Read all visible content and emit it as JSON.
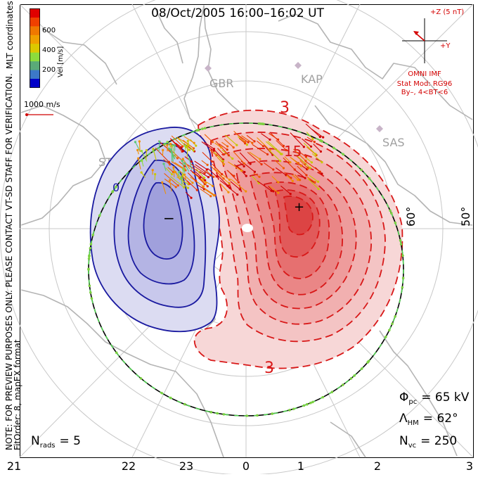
{
  "header": {
    "title": "08/Oct/2005 16:00–16:02 UT",
    "coords_label": "MLT coordinates"
  },
  "disclaimer": {
    "line1": "NOTE: FOR PREVIEW PURPOSES ONLY. PLEASE CONTACT VT-SD STAFF FOR VERIFICATION.",
    "line2": "FitOrder: 8, mapEX format"
  },
  "velocity_scale": {
    "label": "Vel [m/s]",
    "ticks": [
      "600",
      "400",
      "200"
    ],
    "colors": [
      "#0000c8",
      "#3c78c8",
      "#5aaa78",
      "#8cdc3c",
      "#dcc800",
      "#f0a000",
      "#f07800",
      "#f04000",
      "#e00000"
    ],
    "reference_label": "1000 m/s"
  },
  "imf": {
    "z_label": "+Z (5 nT)",
    "y_label": "+Y",
    "source": "OMNI IMF",
    "model": "Stat Mod: RG96",
    "condition": "By–, 4<BT<6",
    "color": "#d40000"
  },
  "stations": [
    "GBR",
    "KAP",
    "SAS",
    "STO"
  ],
  "latitude_labels": [
    "60°",
    "50°"
  ],
  "mlt_labels": [
    "21",
    "22",
    "23",
    "0",
    "1",
    "2",
    "3"
  ],
  "stats": {
    "phi_symbol": "Φ",
    "phi_sub": "pc",
    "phi_value": "= 65 kV",
    "lambda_symbol": "Λ",
    "lambda_sub": "HM",
    "lambda_value": "= 62°",
    "nvc_symbol": "N",
    "nvc_sub": "vc",
    "nvc_value": "= 250",
    "nrads_symbol": "N",
    "nrads_sub": "rads",
    "nrads_value": "= 5"
  },
  "contours": {
    "label_3_top": "3",
    "label_3_bottom": "3",
    "label_15": "15",
    "label_0": "0",
    "min_mark": "−",
    "max_mark": "+",
    "negative_color": "#1a1aa0",
    "positive_color": "#d81818"
  },
  "chart_data": {
    "type": "polar-convection-map",
    "title": "08/Oct/2005 16:00–16:02 UT",
    "coordinates": "MLT",
    "mlt_ticks": [
      "21",
      "22",
      "23",
      "0",
      "1",
      "2",
      "3"
    ],
    "latitude_ticks": [
      "60°",
      "50°"
    ],
    "potential_cross_polar_cap_kV": 65,
    "heppner_maynard_boundary_deg": 62,
    "n_vectors": 250,
    "n_radars": 5,
    "contour_labels": [
      "0",
      "3",
      "15",
      "3"
    ],
    "velocity_colorbar_ms": [
      200,
      400,
      600
    ],
    "reference_vector_ms": 1000,
    "imf_model": "RG96",
    "imf_condition": "By–, 4<BT<6"
  }
}
